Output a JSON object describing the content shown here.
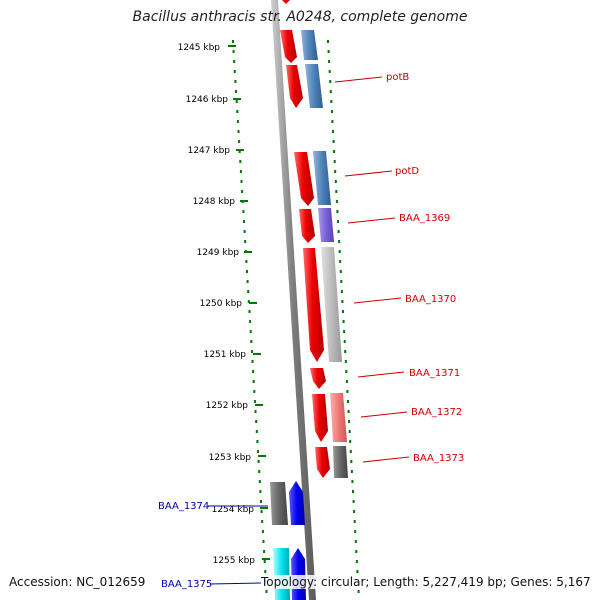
{
  "title": "Bacillus anthracis str. A0248, complete genome",
  "accession_text": "Accession: NC_012659",
  "topology_text": "Topology: circular; Length: 5,227,419 bp; Genes: 5,167",
  "ticks": [
    {
      "label": "1245 kbp"
    },
    {
      "label": "1246 kbp"
    },
    {
      "label": "1247 kbp"
    },
    {
      "label": "1248 kbp"
    },
    {
      "label": "1249 kbp"
    },
    {
      "label": "1250 kbp"
    },
    {
      "label": "1251 kbp"
    },
    {
      "label": "1252 kbp"
    },
    {
      "label": "1253 kbp"
    },
    {
      "label": "1254 kbp"
    },
    {
      "label": "1255 kbp"
    }
  ],
  "gene_labels": [
    {
      "name": "potB",
      "color": "#cc0000"
    },
    {
      "name": "potD",
      "color": "#cc0000"
    },
    {
      "name": "BAA_1369",
      "color": "#cc0000"
    },
    {
      "name": "BAA_1370",
      "color": "#cc0000"
    },
    {
      "name": "BAA_1371",
      "color": "#cc0000"
    },
    {
      "name": "BAA_1372",
      "color": "#cc0000"
    },
    {
      "name": "BAA_1373",
      "color": "#cc0000"
    },
    {
      "name": "BAA_1374",
      "color": "#0000aa"
    },
    {
      "name": "BAA_1375",
      "color": "#0000aa"
    }
  ],
  "colors": {
    "tick": "#007700",
    "backbone": "#888888",
    "forward_gene": "#ee0000",
    "reverse_gene_blue": "#4477aa"
  }
}
